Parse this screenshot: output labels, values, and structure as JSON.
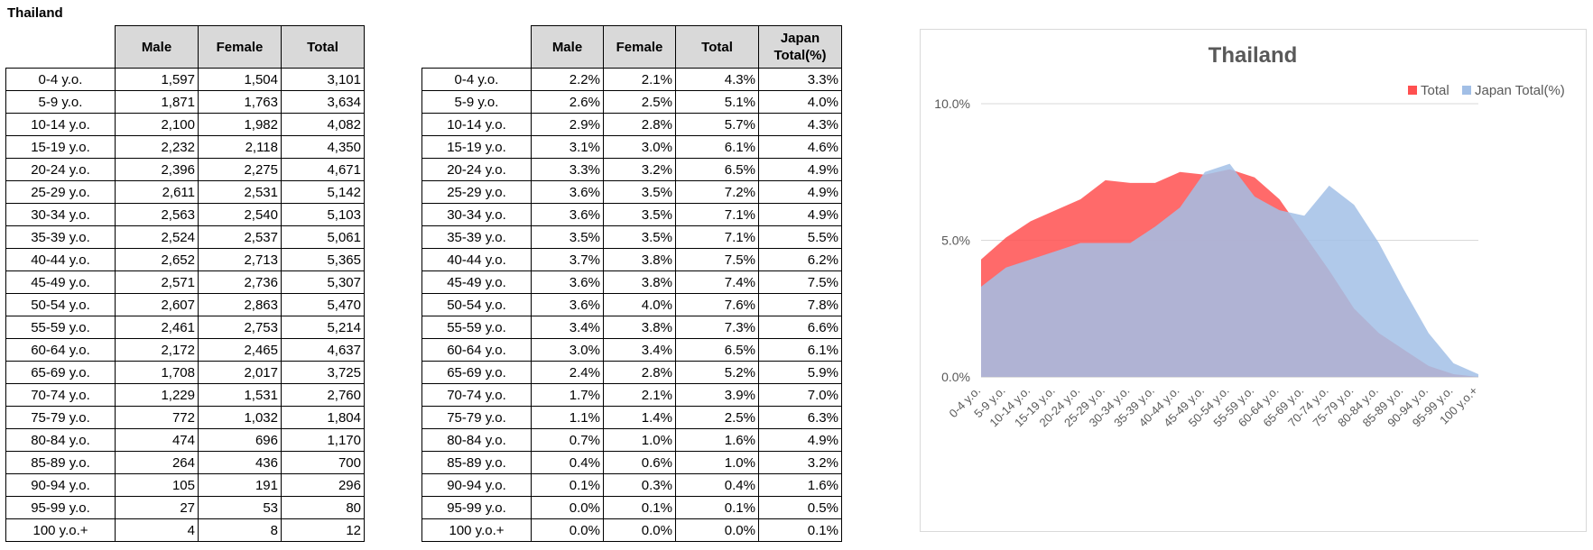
{
  "sheet_title": "Thailand",
  "table1": {
    "headers": [
      "Male",
      "Female",
      "Total"
    ],
    "rows": [
      [
        "0-4 y.o.",
        "1,597",
        "1,504",
        "3,101"
      ],
      [
        "5-9 y.o.",
        "1,871",
        "1,763",
        "3,634"
      ],
      [
        "10-14 y.o.",
        "2,100",
        "1,982",
        "4,082"
      ],
      [
        "15-19 y.o.",
        "2,232",
        "2,118",
        "4,350"
      ],
      [
        "20-24 y.o.",
        "2,396",
        "2,275",
        "4,671"
      ],
      [
        "25-29 y.o.",
        "2,611",
        "2,531",
        "5,142"
      ],
      [
        "30-34 y.o.",
        "2,563",
        "2,540",
        "5,103"
      ],
      [
        "35-39 y.o.",
        "2,524",
        "2,537",
        "5,061"
      ],
      [
        "40-44 y.o.",
        "2,652",
        "2,713",
        "5,365"
      ],
      [
        "45-49 y.o.",
        "2,571",
        "2,736",
        "5,307"
      ],
      [
        "50-54 y.o.",
        "2,607",
        "2,863",
        "5,470"
      ],
      [
        "55-59 y.o.",
        "2,461",
        "2,753",
        "5,214"
      ],
      [
        "60-64 y.o.",
        "2,172",
        "2,465",
        "4,637"
      ],
      [
        "65-69 y.o.",
        "1,708",
        "2,017",
        "3,725"
      ],
      [
        "70-74 y.o.",
        "1,229",
        "1,531",
        "2,760"
      ],
      [
        "75-79 y.o.",
        "772",
        "1,032",
        "1,804"
      ],
      [
        "80-84 y.o.",
        "474",
        "696",
        "1,170"
      ],
      [
        "85-89 y.o.",
        "264",
        "436",
        "700"
      ],
      [
        "90-94 y.o.",
        "105",
        "191",
        "296"
      ],
      [
        "95-99 y.o.",
        "27",
        "53",
        "80"
      ],
      [
        "100 y.o.+",
        "4",
        "8",
        "12"
      ]
    ]
  },
  "table2": {
    "headers": [
      "Male",
      "Female",
      "Total",
      "Japan Total(%)"
    ],
    "rows": [
      [
        "0-4 y.o.",
        "2.2%",
        "2.1%",
        "4.3%",
        "3.3%"
      ],
      [
        "5-9 y.o.",
        "2.6%",
        "2.5%",
        "5.1%",
        "4.0%"
      ],
      [
        "10-14 y.o.",
        "2.9%",
        "2.8%",
        "5.7%",
        "4.3%"
      ],
      [
        "15-19 y.o.",
        "3.1%",
        "3.0%",
        "6.1%",
        "4.6%"
      ],
      [
        "20-24 y.o.",
        "3.3%",
        "3.2%",
        "6.5%",
        "4.9%"
      ],
      [
        "25-29 y.o.",
        "3.6%",
        "3.5%",
        "7.2%",
        "4.9%"
      ],
      [
        "30-34 y.o.",
        "3.6%",
        "3.5%",
        "7.1%",
        "4.9%"
      ],
      [
        "35-39 y.o.",
        "3.5%",
        "3.5%",
        "7.1%",
        "5.5%"
      ],
      [
        "40-44 y.o.",
        "3.7%",
        "3.8%",
        "7.5%",
        "6.2%"
      ],
      [
        "45-49 y.o.",
        "3.6%",
        "3.8%",
        "7.4%",
        "7.5%"
      ],
      [
        "50-54 y.o.",
        "3.6%",
        "4.0%",
        "7.6%",
        "7.8%"
      ],
      [
        "55-59 y.o.",
        "3.4%",
        "3.8%",
        "7.3%",
        "6.6%"
      ],
      [
        "60-64 y.o.",
        "3.0%",
        "3.4%",
        "6.5%",
        "6.1%"
      ],
      [
        "65-69 y.o.",
        "2.4%",
        "2.8%",
        "5.2%",
        "5.9%"
      ],
      [
        "70-74 y.o.",
        "1.7%",
        "2.1%",
        "3.9%",
        "7.0%"
      ],
      [
        "75-79 y.o.",
        "1.1%",
        "1.4%",
        "2.5%",
        "6.3%"
      ],
      [
        "80-84 y.o.",
        "0.7%",
        "1.0%",
        "1.6%",
        "4.9%"
      ],
      [
        "85-89 y.o.",
        "0.4%",
        "0.6%",
        "1.0%",
        "3.2%"
      ],
      [
        "90-94 y.o.",
        "0.1%",
        "0.3%",
        "0.4%",
        "1.6%"
      ],
      [
        "95-99 y.o.",
        "0.0%",
        "0.1%",
        "0.1%",
        "0.5%"
      ],
      [
        "100 y.o.+",
        "0.0%",
        "0.0%",
        "0.0%",
        "0.1%"
      ]
    ]
  },
  "chart_data": {
    "type": "area",
    "title": "Thailand",
    "categories": [
      "0-4 y.o.",
      "5-9 y.o.",
      "10-14 y.o.",
      "15-19 y.o.",
      "20-24 y.o.",
      "25-29 y.o.",
      "30-34 y.o.",
      "35-39 y.o.",
      "40-44 y.o.",
      "45-49 y.o.",
      "50-54 y.o.",
      "55-59 y.o.",
      "60-64 y.o.",
      "65-69 y.o.",
      "70-74 y.o.",
      "75-79 y.o.",
      "80-84 y.o.",
      "85-89 y.o.",
      "90-94 y.o.",
      "95-99 y.o.",
      "100 y.o.+"
    ],
    "series": [
      {
        "name": "Total",
        "color": "#ff5050",
        "opacity": 0.85,
        "values": [
          4.3,
          5.1,
          5.7,
          6.1,
          6.5,
          7.2,
          7.1,
          7.1,
          7.5,
          7.4,
          7.6,
          7.3,
          6.5,
          5.2,
          3.9,
          2.5,
          1.6,
          1.0,
          0.4,
          0.1,
          0.0
        ]
      },
      {
        "name": "Japan Total(%)",
        "color": "#a2bfe6",
        "opacity": 0.85,
        "values": [
          3.3,
          4.0,
          4.3,
          4.6,
          4.9,
          4.9,
          4.9,
          5.5,
          6.2,
          7.5,
          7.8,
          6.6,
          6.1,
          5.9,
          7.0,
          6.3,
          4.9,
          3.2,
          1.6,
          0.5,
          0.1
        ]
      }
    ],
    "yticks": [
      "0.0%",
      "5.0%",
      "10.0%"
    ],
    "ytick_values": [
      0,
      5,
      10
    ],
    "ylim": [
      0,
      10
    ],
    "grid": true,
    "legend": "top-right"
  }
}
